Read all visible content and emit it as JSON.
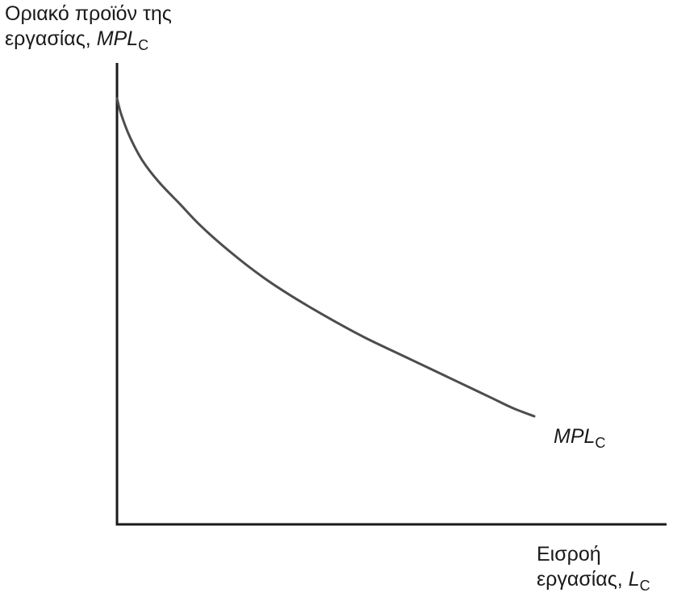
{
  "chart_data": {
    "type": "line",
    "title": "",
    "ylabel": {
      "line1": "Οριακό προϊόν της",
      "line2_prefix": "εργασίας, ",
      "symbol": "MPL",
      "subscript": "C"
    },
    "xlabel": {
      "line1": "Εισροή",
      "line2_prefix": "εργασίας, ",
      "symbol": "L",
      "subscript": "C"
    },
    "xlim": [
      0,
      1
    ],
    "ylim": [
      0,
      1
    ],
    "ticks": false,
    "grid": false,
    "series": [
      {
        "name": "MPL_C",
        "label_symbol": "MPL",
        "label_subscript": "C",
        "color": "#4d4d4d",
        "x": [
          0,
          0.01,
          0.03,
          0.06,
          0.1,
          0.15,
          0.2,
          0.27,
          0.35,
          0.43,
          0.52,
          0.6,
          0.68,
          0.75,
          0.8,
          0.85,
          0.9,
          0.95,
          1.0
        ],
        "y": [
          1.0,
          0.96,
          0.905,
          0.845,
          0.79,
          0.735,
          0.68,
          0.615,
          0.55,
          0.495,
          0.44,
          0.395,
          0.355,
          0.32,
          0.295,
          0.27,
          0.245,
          0.22,
          0.2
        ]
      }
    ]
  }
}
